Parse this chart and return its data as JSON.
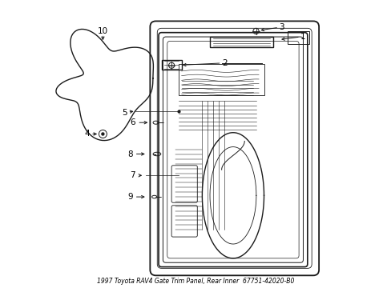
{
  "title": "1997 Toyota RAV4 Gate Trim Panel, Rear Inner  67751-42020-B0",
  "bg_color": "#ffffff",
  "line_color": "#1a1a1a",
  "label_color": "#000000"
}
